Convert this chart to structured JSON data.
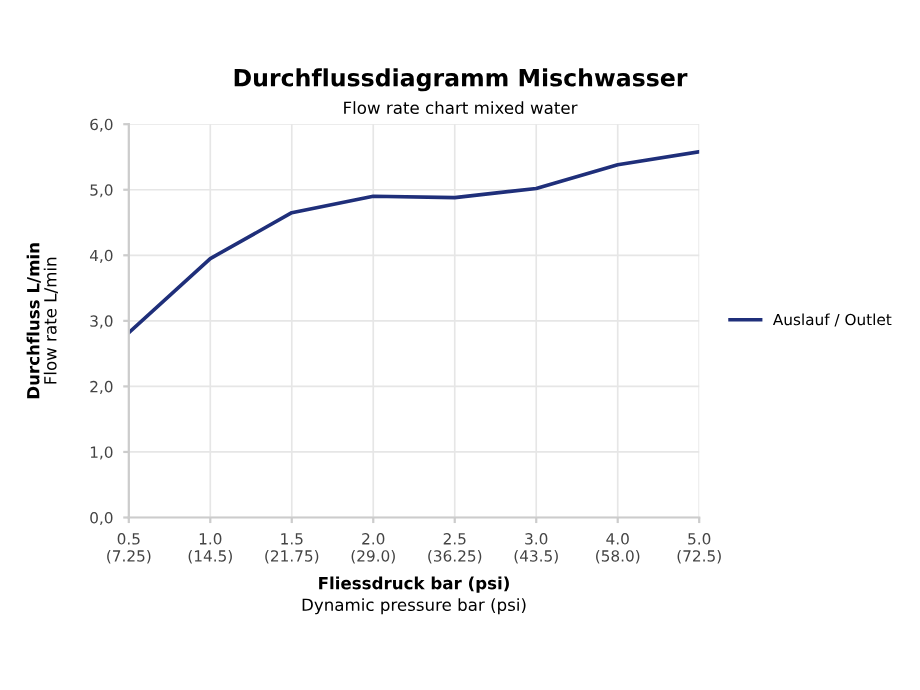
{
  "chart_data": {
    "type": "line",
    "title": "Durchflussdiagramm Mischwasser",
    "subtitle": "Flow rate chart mixed water",
    "xlabel": "Fliessdruck bar (psi)\nDynamic pressure bar (psi)",
    "ylabel": "Durchfluss L/min\nFlow rate L/min",
    "categories": [
      "0.5\n(7.25)",
      "1.0\n(14.5)",
      "1.5\n(21.75)",
      "2.0\n(29.0)",
      "2.5\n(36.25)",
      "3.0\n(43.5)",
      "4.0\n(58.0)",
      "5.0\n(72.5)"
    ],
    "series": [
      {
        "name": "Auslauf / Outlet",
        "color": "#1f2f7a",
        "values": [
          2.82,
          3.95,
          4.65,
          4.9,
          4.88,
          5.02,
          5.38,
          5.58
        ]
      }
    ],
    "ylim": [
      0,
      6
    ],
    "yticks": [
      {
        "value": 0,
        "label": "0,0"
      },
      {
        "value": 1,
        "label": "1,0"
      },
      {
        "value": 2,
        "label": "2,0"
      },
      {
        "value": 3,
        "label": "3,0"
      },
      {
        "value": 4,
        "label": "4,0"
      },
      {
        "value": 5,
        "label": "5,0"
      },
      {
        "value": 6,
        "label": "6,0"
      }
    ],
    "grid": true,
    "legend": "right",
    "marker": "none",
    "line_style": "solid"
  }
}
